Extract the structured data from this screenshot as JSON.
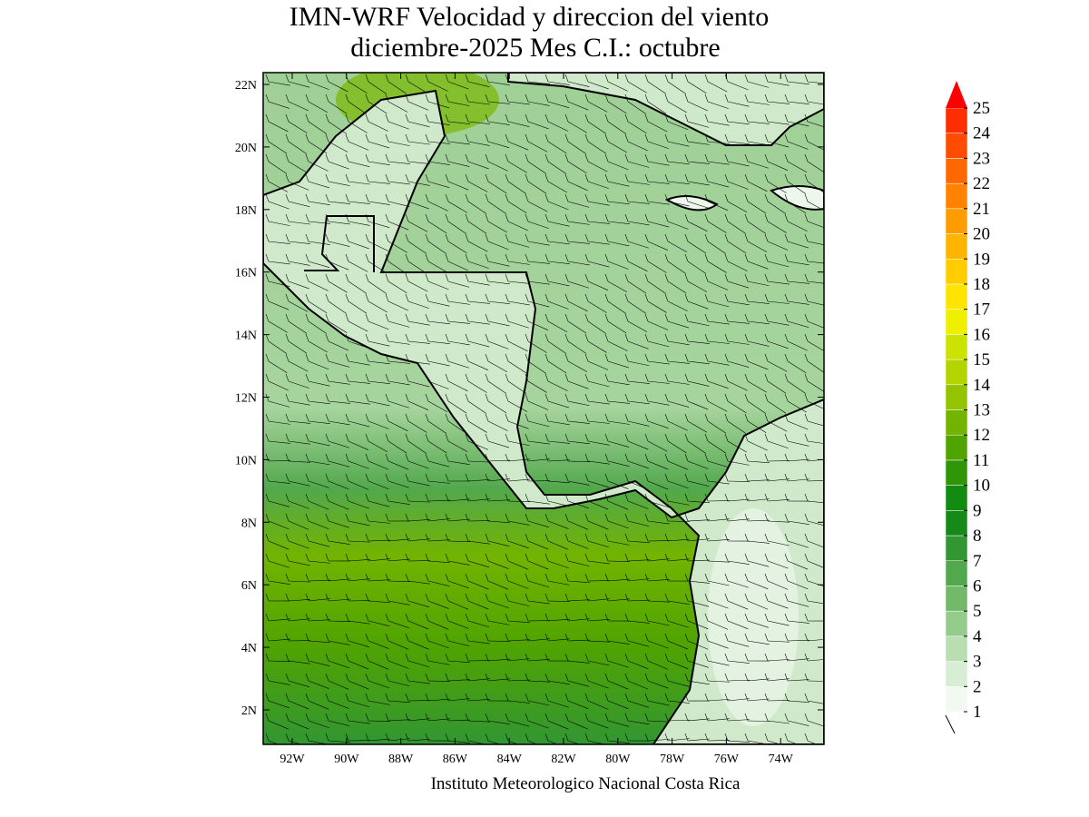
{
  "title": [
    "IMN-WRF Velocidad y direccion del viento",
    "diciembre-2025 Mes C.I.: octubre"
  ],
  "lat_labels": [
    "22N",
    "20N",
    "18N",
    "16N",
    "14N",
    "12N",
    "10N",
    "8N",
    "6N",
    "4N",
    "2N"
  ],
  "lon_labels": [
    "92W",
    "90W",
    "88W",
    "86W",
    "84W",
    "82W",
    "80W",
    "78W",
    "76W",
    "74W"
  ],
  "colorbar": {
    "levels": [
      1,
      2,
      3,
      4,
      5,
      6,
      7,
      8,
      9,
      10,
      11,
      12,
      13,
      14,
      15,
      16,
      17,
      18,
      19,
      20,
      21,
      22,
      23,
      24,
      25
    ],
    "colors": [
      "#f2f9f0",
      "#d8eed4",
      "#b8deb2",
      "#94cc8c",
      "#72ba6a",
      "#52a84c",
      "#329632",
      "#168a18",
      "#128c10",
      "#2e9608",
      "#50a400",
      "#72b400",
      "#94c400",
      "#b4d400",
      "#cce200",
      "#eef000",
      "#ffe400",
      "#ffcc00",
      "#ffb400",
      "#ff9c00",
      "#ff8200",
      "#ff6800",
      "#ff4c00",
      "#ff2e00",
      "#ff0000"
    ]
  },
  "footer": "Instituto Meteorologico Nacional Costa Rica"
}
